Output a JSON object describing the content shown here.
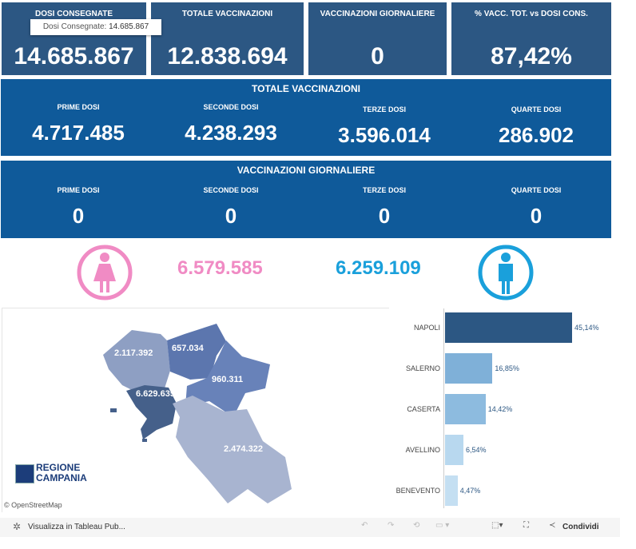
{
  "kpis": [
    {
      "title": "DOSI CONSEGNATE",
      "value": "14.685.867"
    },
    {
      "title": "TOTALE VACCINAZIONI",
      "value": "12.838.694"
    },
    {
      "title": "VACCINAZIONI GIORNALIERE",
      "value": "0"
    },
    {
      "title": "% VACC. TOT. vs DOSI CONS.",
      "value": "87,42%"
    }
  ],
  "tooltip": {
    "label": "Dosi Consegnate:",
    "value": "14.685.867"
  },
  "totale": {
    "title": "TOTALE VACCINAZIONI",
    "cells": [
      {
        "label": "PRIME DOSI",
        "value": "4.717.485"
      },
      {
        "label": "SECONDE DOSI",
        "value": "4.238.293"
      },
      {
        "label": "TERZE DOSI",
        "value": "3.596.014"
      },
      {
        "label": "QUARTE DOSI",
        "value": "286.902"
      }
    ]
  },
  "giornaliere": {
    "title": "VACCINAZIONI GIORNALIERE",
    "cells": [
      {
        "label": "PRIME DOSI",
        "value": "0"
      },
      {
        "label": "SECONDE DOSI",
        "value": "0"
      },
      {
        "label": "TERZE DOSI",
        "value": "0"
      },
      {
        "label": "QUARTE DOSI",
        "value": "0"
      }
    ]
  },
  "gender": {
    "female": "6.579.585",
    "male": "6.259.109",
    "female_color": "#f08bc4",
    "male_color": "#1aa0db"
  },
  "map": {
    "labels": {
      "caserta": "2.117.392",
      "benevento": "657.034",
      "avellino": "960.311",
      "napoli": "6.629.635",
      "salerno": "2.474.322"
    },
    "logo": [
      "REGIONE",
      "CAMPANIA"
    ],
    "attribution": "© OpenStreetMap"
  },
  "chart_data": {
    "type": "bar",
    "orientation": "horizontal",
    "categories": [
      "NAPOLI",
      "SALERNO",
      "CASERTA",
      "AVELLINO",
      "BENEVENTO"
    ],
    "values": [
      45.14,
      16.85,
      14.42,
      6.54,
      4.47
    ],
    "labels": [
      "45,14%",
      "16,85%",
      "14,42%",
      "6,54%",
      "4,47%"
    ],
    "colors": [
      "#2c5783",
      "#7fb0d8",
      "#8dbbdf",
      "#b8d8ef",
      "#c4dff2"
    ]
  },
  "footer": {
    "view": "Visualizza in Tableau Pub...",
    "share": "Condividi"
  }
}
